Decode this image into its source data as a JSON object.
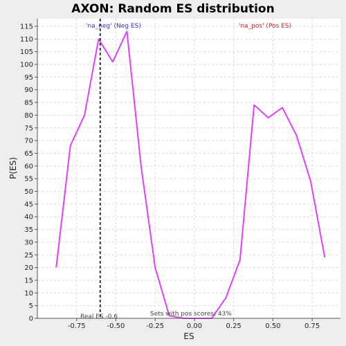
{
  "chart_data": {
    "type": "line",
    "title": "AXON: Random ES distribution",
    "xlabel": "ES",
    "ylabel": "P(ES)",
    "xlim": [
      -1.0,
      0.93
    ],
    "ylim": [
      0,
      118
    ],
    "grid": true,
    "x_ticks": [
      -0.75,
      -0.5,
      -0.25,
      0.0,
      0.25,
      0.5,
      0.75
    ],
    "x_tick_labels": [
      "-0.75",
      "-0.50",
      "-0.25",
      "0.00",
      "0.25",
      "0.50",
      "0.75"
    ],
    "y_ticks": [
      0,
      5,
      10,
      15,
      20,
      25,
      30,
      35,
      40,
      45,
      50,
      55,
      60,
      65,
      70,
      75,
      80,
      85,
      90,
      95,
      100,
      105,
      110,
      115
    ],
    "series": [
      {
        "color": "#e040fb",
        "x": [
          -0.88,
          -0.79,
          -0.7,
          -0.61,
          -0.52,
          -0.43,
          -0.34,
          -0.25,
          -0.16,
          -0.07,
          0.02,
          0.11,
          0.2,
          0.29,
          0.38,
          0.47,
          0.56,
          0.65,
          0.74,
          0.83
        ],
        "y": [
          20,
          68,
          80,
          110,
          101,
          113,
          60,
          20,
          1,
          0,
          0,
          0,
          8,
          23,
          84,
          79,
          83,
          72,
          54,
          24
        ]
      }
    ],
    "real_es": -0.6,
    "annotations": {
      "neg_label": "'na_neg' (Neg ES)",
      "pos_label": "'na_pos' (Pos ES)",
      "real_es_label": "Real ES -0.6",
      "pos_scores_label": "Sets with pos scores: 43%"
    },
    "colors": {
      "neg": "#3333cc",
      "pos": "#cc2222",
      "grid": "#d8d8d8",
      "plot_bg": "#ffffff",
      "page_bg": "#eeeeee"
    }
  }
}
